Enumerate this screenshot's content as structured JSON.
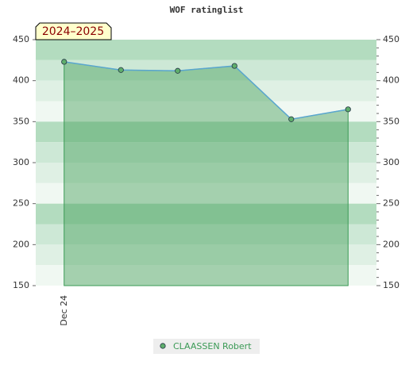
{
  "chart_data": {
    "type": "line",
    "title": "WOF ratinglist",
    "annotation": "2024–2025",
    "categories": [
      "Dec 24",
      null,
      null,
      null,
      null,
      null
    ],
    "series": [
      {
        "name": "CLAASSEN Robert",
        "color": "#5aa6cf",
        "marker_color": "#5fae6c",
        "values": [
          423,
          413,
          412,
          418,
          353,
          365
        ]
      }
    ],
    "ylim": [
      150,
      450
    ],
    "yticks": [
      150,
      200,
      250,
      300,
      350,
      400,
      450
    ],
    "y2lim": [
      150,
      450
    ],
    "y2ticks": [
      150,
      200,
      250,
      300,
      350,
      400,
      450
    ],
    "area": true,
    "legend": "bottom"
  }
}
